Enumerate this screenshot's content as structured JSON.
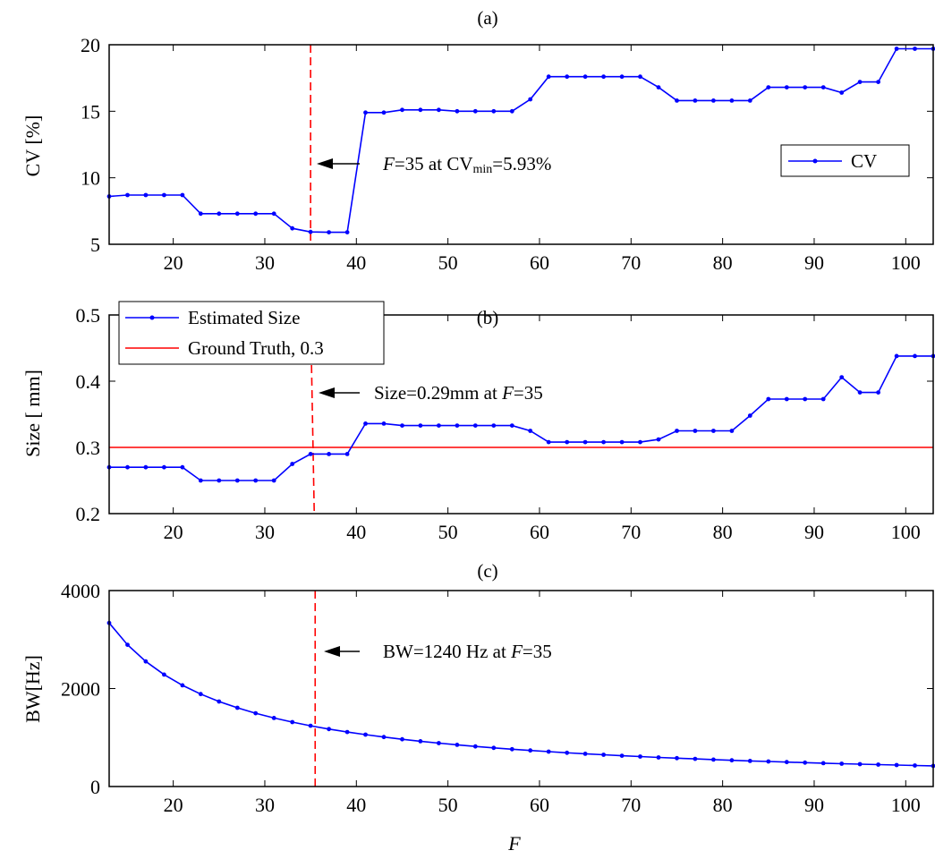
{
  "xlabel": "F",
  "chart_data": [
    {
      "type": "line",
      "title": "(a)",
      "xlabel": "",
      "ylabel": "CV [%]",
      "xlim": [
        13,
        103
      ],
      "ylim": [
        5,
        20
      ],
      "xticks": [
        20,
        30,
        40,
        50,
        60,
        70,
        80,
        90,
        100
      ],
      "yticks": [
        5,
        10,
        15,
        20
      ],
      "grid": false,
      "legend_position": "right",
      "series": [
        {
          "name": "CV",
          "color": "#0000ff",
          "x": [
            13,
            15,
            17,
            19,
            21,
            23,
            25,
            27,
            29,
            31,
            33,
            35,
            37,
            39,
            41,
            43,
            45,
            47,
            49,
            51,
            53,
            55,
            57,
            59,
            61,
            63,
            65,
            67,
            69,
            71,
            73,
            75,
            77,
            79,
            81,
            83,
            85,
            87,
            89,
            91,
            93,
            95,
            97,
            99,
            101,
            103
          ],
          "y": [
            8.6,
            8.7,
            8.7,
            8.7,
            8.7,
            7.3,
            7.3,
            7.3,
            7.3,
            7.3,
            6.2,
            5.93,
            5.9,
            5.9,
            14.9,
            14.9,
            15.1,
            15.1,
            15.1,
            15.0,
            15.0,
            15.0,
            15.0,
            15.9,
            17.6,
            17.6,
            17.6,
            17.6,
            17.6,
            17.6,
            16.8,
            15.8,
            15.8,
            15.8,
            15.8,
            15.8,
            16.8,
            16.8,
            16.8,
            16.8,
            16.4,
            17.2,
            17.2,
            19.7,
            19.7,
            19.7
          ]
        }
      ],
      "vline": {
        "x": 35,
        "color": "#ff0000",
        "style": "dashed"
      },
      "annotation": {
        "italic": "F",
        "text1": "=35 at CV",
        "sub": "min",
        "text2": "=5.93%",
        "arrow_to_x": 35
      }
    },
    {
      "type": "line",
      "title": "(b)",
      "xlabel": "",
      "ylabel": "Size [ mm]",
      "xlim": [
        13,
        103
      ],
      "ylim": [
        0.2,
        0.5
      ],
      "xticks": [
        20,
        30,
        40,
        50,
        60,
        70,
        80,
        90,
        100
      ],
      "yticks": [
        0.2,
        0.3,
        0.4,
        0.5
      ],
      "ytick_labels": [
        "0.2",
        "0.3",
        "0.4",
        "0.5"
      ],
      "grid": false,
      "legend_position": "top-left",
      "series": [
        {
          "name": "Estimated Size",
          "color": "#0000ff",
          "x": [
            13,
            15,
            17,
            19,
            21,
            23,
            25,
            27,
            29,
            31,
            33,
            35,
            37,
            39,
            41,
            43,
            45,
            47,
            49,
            51,
            53,
            55,
            57,
            59,
            61,
            63,
            65,
            67,
            69,
            71,
            73,
            75,
            77,
            79,
            81,
            83,
            85,
            87,
            89,
            91,
            93,
            95,
            97,
            99,
            101,
            103
          ],
          "y": [
            0.27,
            0.27,
            0.27,
            0.27,
            0.27,
            0.25,
            0.25,
            0.25,
            0.25,
            0.25,
            0.275,
            0.29,
            0.29,
            0.29,
            0.336,
            0.336,
            0.333,
            0.333,
            0.333,
            0.333,
            0.333,
            0.333,
            0.333,
            0.325,
            0.308,
            0.308,
            0.308,
            0.308,
            0.308,
            0.308,
            0.312,
            0.325,
            0.325,
            0.325,
            0.325,
            0.348,
            0.373,
            0.373,
            0.373,
            0.373,
            0.406,
            0.383,
            0.383,
            0.438,
            0.438,
            0.438
          ]
        }
      ],
      "hline": {
        "name": "Ground Truth, 0.3",
        "y": 0.3,
        "color": "#ff0000"
      },
      "vline": {
        "x_top": 35,
        "x_bottom": 35.4,
        "color": "#ff0000",
        "style": "dashed"
      },
      "annotation": {
        "text1": "Size=0.29mm at ",
        "italic": "F",
        "text2": "=35",
        "arrow_to_x": 35.2
      }
    },
    {
      "type": "line",
      "title": "(c)",
      "xlabel": "F",
      "ylabel": "BW[Hz]",
      "xlim": [
        13,
        103
      ],
      "ylim": [
        0,
        4000
      ],
      "xticks": [
        20,
        30,
        40,
        50,
        60,
        70,
        80,
        90,
        100
      ],
      "yticks": [
        0,
        2000,
        4000
      ],
      "grid": false,
      "series": [
        {
          "name": "",
          "color": "#0000ff",
          "formula_note": "BW = 43400 / F"
        }
      ],
      "vline": {
        "x": 35.5,
        "color": "#ff0000",
        "style": "dashed"
      },
      "annotation": {
        "text1": "BW=1240 Hz at ",
        "italic": "F",
        "text2": "=35",
        "arrow_to_x": 35.6
      }
    }
  ]
}
